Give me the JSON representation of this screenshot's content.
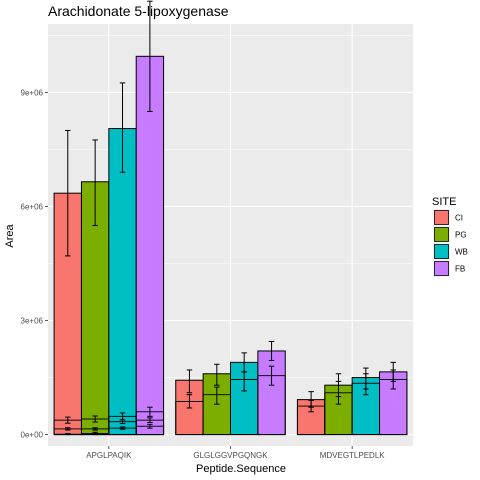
{
  "chart_data": {
    "type": "bar",
    "title": "Arachidonate 5-lipoxygenase",
    "xlabel": "Peptide.Sequence",
    "ylabel": "Area",
    "ylim": [
      -300000,
      10800000
    ],
    "yticks": [
      0,
      3000000,
      6000000,
      9000000
    ],
    "ytick_labels": [
      "0e+00",
      "3e+06",
      "6e+06",
      "9e+06"
    ],
    "categories": [
      "APGLPAQIK",
      "GLGLGGVPGQNGK",
      "MDVEGTLPEDLK"
    ],
    "grid": true,
    "legend": {
      "title": "SITE",
      "placement": "right"
    },
    "series": [
      {
        "name": "CI",
        "color": "#F8766D",
        "values": [
          6350000,
          1430000,
          920000
        ],
        "err_low": [
          4700000,
          1100000,
          720000
        ],
        "err_high": [
          8000000,
          1700000,
          1130000
        ],
        "inner_bars": [
          [
            380000,
            150000,
            10000
          ],
          [
            0,
            0,
            870000
          ],
          [
            0,
            0,
            750000
          ]
        ],
        "inner_err_low": [
          [
            300000,
            120000,
            0
          ],
          [
            0,
            0,
            700000
          ],
          [
            0,
            0,
            600000
          ]
        ],
        "inner_err_high": [
          [
            460000,
            180000,
            30000
          ],
          [
            0,
            0,
            1050000
          ],
          [
            0,
            0,
            900000
          ]
        ]
      },
      {
        "name": "PG",
        "color": "#7CAE00",
        "values": [
          6650000,
          1600000,
          1300000
        ],
        "err_low": [
          5500000,
          1300000,
          1000000
        ],
        "err_high": [
          7750000,
          1850000,
          1600000
        ],
        "inner_bars": [
          [
            410000,
            150000,
            30000
          ],
          [
            0,
            0,
            1050000
          ],
          [
            0,
            0,
            1100000
          ]
        ],
        "inner_err_low": [
          [
            330000,
            120000,
            0
          ],
          [
            0,
            0,
            800000
          ],
          [
            0,
            0,
            800000
          ]
        ],
        "inner_err_high": [
          [
            490000,
            180000,
            60000
          ],
          [
            0,
            0,
            1250000
          ],
          [
            0,
            0,
            1400000
          ]
        ]
      },
      {
        "name": "WB",
        "color": "#00BFC4",
        "values": [
          8050000,
          1900000,
          1500000
        ],
        "err_low": [
          6900000,
          1650000,
          1200000
        ],
        "err_high": [
          9250000,
          2150000,
          1750000
        ],
        "inner_bars": [
          [
            480000,
            170000,
            340000
          ],
          [
            0,
            0,
            1450000
          ],
          [
            0,
            0,
            1350000
          ]
        ],
        "inner_err_low": [
          [
            390000,
            140000,
            290000
          ],
          [
            0,
            0,
            1150000
          ],
          [
            0,
            0,
            1050000
          ]
        ],
        "inner_err_high": [
          [
            570000,
            200000,
            390000
          ],
          [
            0,
            0,
            1650000
          ],
          [
            0,
            0,
            1600000
          ]
        ]
      },
      {
        "name": "FB",
        "color": "#C77CFF",
        "values": [
          9950000,
          2200000,
          1650000
        ],
        "err_low": [
          8500000,
          1950000,
          1400000
        ],
        "err_high": [
          11400000,
          2450000,
          1900000
        ],
        "inner_bars": [
          [
            600000,
            220000,
            380000
          ],
          [
            0,
            0,
            1550000
          ],
          [
            0,
            0,
            1450000
          ]
        ],
        "inner_err_low": [
          [
            480000,
            170000,
            320000
          ],
          [
            0,
            0,
            1300000
          ],
          [
            0,
            0,
            1200000
          ]
        ],
        "inner_err_high": [
          [
            720000,
            270000,
            440000
          ],
          [
            0,
            0,
            1800000
          ],
          [
            0,
            0,
            1700000
          ]
        ]
      }
    ]
  }
}
